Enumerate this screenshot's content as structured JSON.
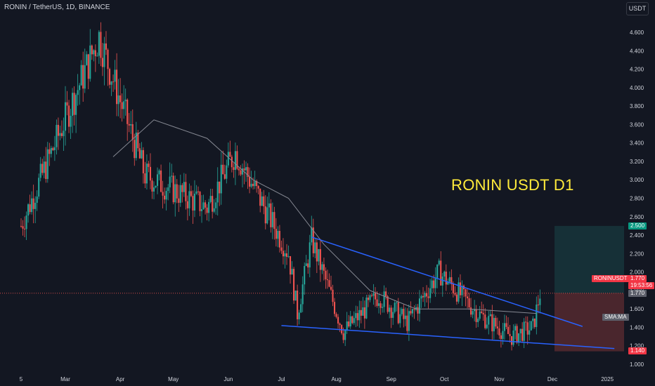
{
  "header": {
    "symbol_title": "RONIN / TetherUS, 1D, BINANCE",
    "currency_button": "USDT"
  },
  "annotation": {
    "text": "RONIN USDT D1"
  },
  "price_tags": {
    "symbol": "RONINUSDT",
    "last_price": "1.770",
    "countdown": "19:53:56",
    "last_close_marker": "1.770",
    "target": "2.500",
    "stop": "1.140",
    "indicator": "SMA:MA"
  },
  "colors": {
    "background": "#131722",
    "up": "#26a69a",
    "down": "#ef5350",
    "trendline": "#2962ff",
    "sma": "#868993",
    "profit_zone": "#26a69a",
    "loss_zone": "#ef5350",
    "annotation": "#ffeb3b"
  },
  "chart_data": {
    "type": "candlestick",
    "title": "RONIN / TetherUS, 1D, BINANCE",
    "y_axis": {
      "ticks": [
        "4.600",
        "4.400",
        "4.200",
        "4.000",
        "3.800",
        "3.600",
        "3.400",
        "3.200",
        "3.000",
        "2.800",
        "2.600",
        "2.400",
        "2.200",
        "2.000",
        "1.800",
        "1.600",
        "1.400",
        "1.200",
        "1.000"
      ],
      "range": [
        1.0,
        4.65
      ]
    },
    "x_axis": {
      "ticks": [
        "5",
        "Mar",
        "Apr",
        "May",
        "Jun",
        "Jul",
        "Aug",
        "Sep",
        "Oct",
        "Nov",
        "Dec",
        "2025"
      ]
    },
    "last_price": 1.77,
    "key_points": [
      {
        "date": "Feb 5",
        "price": 2.5
      },
      {
        "date": "Mar 20",
        "price": 4.55
      },
      {
        "date": "Apr 15",
        "price": 3.05
      },
      {
        "date": "May 20",
        "price": 2.7
      },
      {
        "date": "Jun 5",
        "price": 3.3
      },
      {
        "date": "Jul 5",
        "price": 2.2
      },
      {
        "date": "Jul 10",
        "price": 1.55
      },
      {
        "date": "Jul 18",
        "price": 2.35
      },
      {
        "date": "Aug 5",
        "price": 1.35
      },
      {
        "date": "Aug 25",
        "price": 1.75
      },
      {
        "date": "Sep 10",
        "price": 1.45
      },
      {
        "date": "Sep 28",
        "price": 2.0
      },
      {
        "date": "Oct 20",
        "price": 1.55
      },
      {
        "date": "Nov 8",
        "price": 1.3
      },
      {
        "date": "Nov 20",
        "price": 1.4
      },
      {
        "date": "Nov 24",
        "price": 1.77
      }
    ],
    "sma_points": [
      {
        "date": "Mar 28",
        "price": 3.25
      },
      {
        "date": "Apr 20",
        "price": 3.65
      },
      {
        "date": "May 20",
        "price": 3.45
      },
      {
        "date": "Jun 15",
        "price": 3.0
      },
      {
        "date": "Jul 5",
        "price": 2.8
      },
      {
        "date": "Jul 25",
        "price": 2.3
      },
      {
        "date": "Aug 20",
        "price": 1.8
      },
      {
        "date": "Sep 15",
        "price": 1.6
      },
      {
        "date": "Oct 15",
        "price": 1.6
      },
      {
        "date": "Nov 22",
        "price": 1.55
      }
    ],
    "trendlines": [
      {
        "name": "upper",
        "start": {
          "date": "Jul 18",
          "price": 2.38
        },
        "end": {
          "date": "Dec 18",
          "price": 1.41
        }
      },
      {
        "name": "lower",
        "start": {
          "date": "Jul 1",
          "price": 1.42
        },
        "end": {
          "date": "Jan 5",
          "price": 1.17
        }
      }
    ],
    "position": {
      "entry": 1.77,
      "target": 2.5,
      "stop": 1.14
    }
  }
}
